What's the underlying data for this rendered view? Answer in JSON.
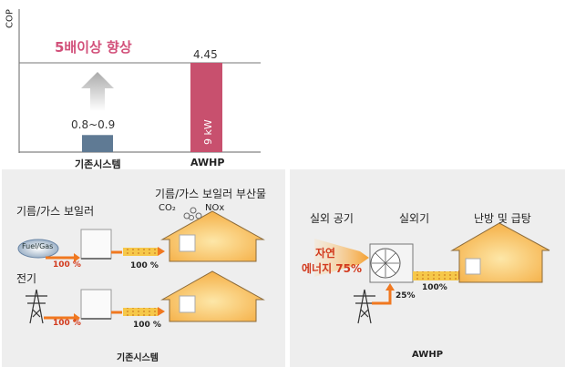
{
  "chart": {
    "ylabel": "COP",
    "improvement_text": "5배이상 향상",
    "bars": [
      {
        "category": "기존시스템",
        "value_label": "0.8~0.9",
        "color": "#5f7a94"
      },
      {
        "category": "AWHP",
        "value_label": "4.45",
        "inner_label": "9 kW",
        "color": "#c8506e"
      }
    ]
  },
  "chart_data": {
    "type": "bar",
    "categories": [
      "기존시스템",
      "AWHP"
    ],
    "values": [
      0.85,
      4.45
    ],
    "ylabel": "COP",
    "annotations": [
      "0.8~0.9",
      "4.45",
      "9 kW",
      "5배이상 향상"
    ]
  },
  "left_panel": {
    "boiler_label": "기름/가스 보일러",
    "byproduct_label": "기름/가스 보일러 부산물",
    "co2_label": "CO₂",
    "nox_label": "NOx",
    "fuel_label": "Fuel/Gas",
    "electric_label": "전기",
    "input_pct_1": "100 %",
    "output_pct_1": "100 %",
    "input_pct_2": "100 %",
    "output_pct_2": "100 %",
    "caption": "기존시스템"
  },
  "right_panel": {
    "outdoor_air_label": "실외 공기",
    "outdoor_unit_label": "실외기",
    "heating_label": "난방 및 급탕",
    "nature_label_line1": "자연",
    "nature_label_line2": "에너지 75%",
    "elec_pct": "25%",
    "output_pct": "100%",
    "caption": "AWHP"
  },
  "colors": {
    "accent_pink": "#d2507a",
    "arrow_orange": "#f07820",
    "heat_yellow": "#f6c84a",
    "house_fill": "#f9c25a",
    "panel_bg": "#eeeeee"
  }
}
